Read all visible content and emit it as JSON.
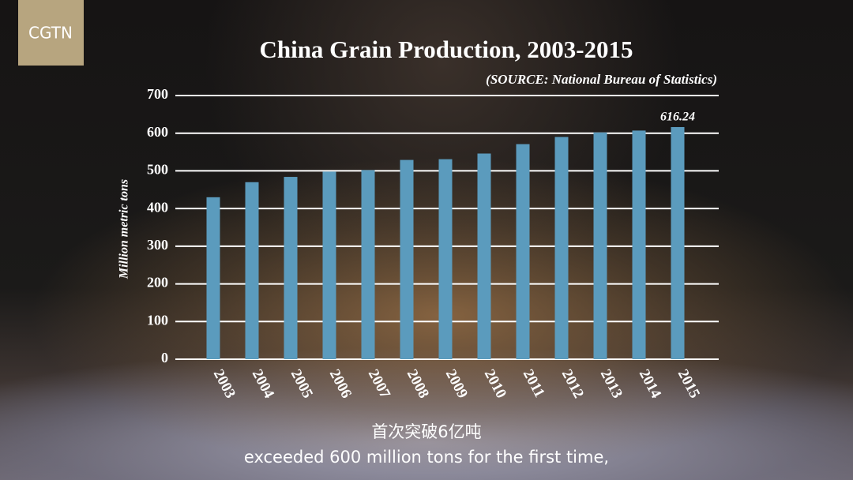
{
  "logo": "CGTN",
  "captions": [
    "首次突破6亿吨",
    "exceeded 600 million tons for the first time,"
  ],
  "chart_data": {
    "type": "bar",
    "title": "China Grain Production, 2003-2015",
    "subtitle": "(SOURCE: National Bureau of Statistics)",
    "y_label": "Million metric tons",
    "categories": [
      "2003",
      "2004",
      "2005",
      "2006",
      "2007",
      "2008",
      "2009",
      "2010",
      "2011",
      "2012",
      "2013",
      "2014",
      "2015"
    ],
    "values": [
      430,
      470,
      484,
      498,
      502,
      529,
      531,
      546,
      571,
      590,
      602,
      607,
      616.24
    ],
    "labeled_index": 12,
    "color": "#5b9bbd",
    "ylim": [
      0,
      700
    ],
    "yticks": [
      0,
      100,
      200,
      300,
      400,
      500,
      600,
      700
    ],
    "grid": true
  }
}
